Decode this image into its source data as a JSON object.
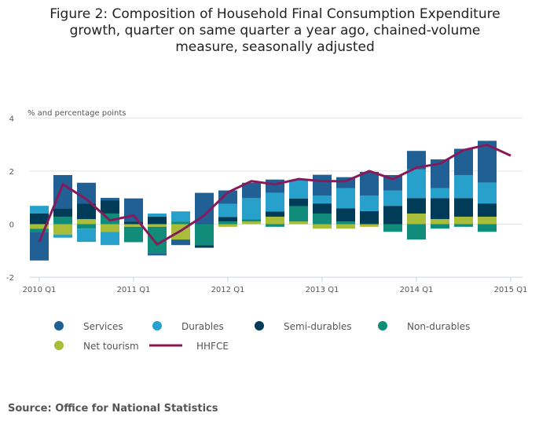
{
  "chart_data": {
    "type": "bar",
    "stacked": true,
    "title": "Figure 2: Composition of Household Final Consumption Expenditure growth, quarter on same quarter a year ago, chained-volume measure, seasonally adjusted",
    "ylabel": "% and percentage points",
    "ylim": [
      -2,
      4
    ],
    "yticks": [
      "4",
      "2",
      "0",
      "-2"
    ],
    "ytick_values": [
      4,
      2,
      0,
      -2
    ],
    "xtick_labels": [
      "2010 Q1",
      "2011 Q1",
      "2012 Q1",
      "2013 Q1",
      "2014 Q1",
      "2015 Q1"
    ],
    "grid": true,
    "legend_position": "bottom",
    "categories": [
      "2010 Q1",
      "2010 Q2",
      "2010 Q3",
      "2010 Q4",
      "2011 Q1",
      "2011 Q2",
      "2011 Q3",
      "2011 Q4",
      "2012 Q1",
      "2012 Q2",
      "2012 Q3",
      "2012 Q4",
      "2013 Q1",
      "2013 Q2",
      "2013 Q3",
      "2013 Q4",
      "2014 Q1",
      "2014 Q2",
      "2014 Q3",
      "2014 Q4",
      "2015 Q1"
    ],
    "series": [
      {
        "name": "Net tourism",
        "color": "#a8bd3a",
        "values": [
          -0.17,
          -0.39,
          0.19,
          -0.29,
          -0.1,
          -0.1,
          -0.58,
          0,
          -0.1,
          0.1,
          0.28,
          0.1,
          -0.17,
          -0.17,
          -0.1,
          0,
          0.4,
          0.19,
          0.28,
          0.28,
          null
        ]
      },
      {
        "name": "Non-durables",
        "color": "#118c7b",
        "values": [
          -0.12,
          0.28,
          -0.17,
          0.4,
          -0.58,
          -0.99,
          0.1,
          -0.8,
          0.1,
          0.09,
          -0.1,
          0.58,
          0.4,
          0.1,
          0,
          -0.29,
          -0.58,
          -0.17,
          -0.1,
          -0.29,
          null
        ]
      },
      {
        "name": "Semi-durables",
        "color": "#003c57",
        "values": [
          0.4,
          0.32,
          0.58,
          0.5,
          0.1,
          0.28,
          0,
          -0.09,
          0.17,
          0,
          0.2,
          0.29,
          0.38,
          0.5,
          0.49,
          0.69,
          0.58,
          0.79,
          0.7,
          0.5,
          null
        ]
      },
      {
        "name": "Durables",
        "color": "#27a0cc",
        "values": [
          0.29,
          -0.12,
          -0.5,
          -0.5,
          0,
          0.12,
          0.38,
          0,
          0.5,
          0.79,
          0.7,
          0.7,
          0.29,
          0.76,
          0.58,
          0.58,
          1.08,
          0.38,
          0.87,
          0.79,
          null
        ]
      },
      {
        "name": "Services",
        "color": "#206095",
        "values": [
          -1.08,
          1.25,
          0.79,
          0.09,
          0.87,
          -0.09,
          -0.21,
          1.18,
          0.5,
          0.58,
          0.5,
          0,
          0.79,
          0.41,
          0.9,
          0.58,
          0.7,
          1.08,
          0.99,
          1.57,
          null
        ]
      }
    ],
    "line": {
      "name": "HHFCE",
      "color": "#871a5b",
      "values": [
        -0.67,
        1.5,
        0.94,
        0.14,
        0.33,
        -0.76,
        -0.25,
        0.33,
        1.2,
        1.62,
        1.5,
        1.7,
        1.62,
        1.62,
        2.0,
        1.7,
        2.13,
        2.28,
        2.79,
        2.99,
        2.58
      ]
    },
    "legend_order": [
      "Services",
      "Durables",
      "Semi-durables",
      "Non-durables",
      "Net tourism",
      "HHFCE"
    ]
  },
  "source": "Source: Office for National Statistics"
}
